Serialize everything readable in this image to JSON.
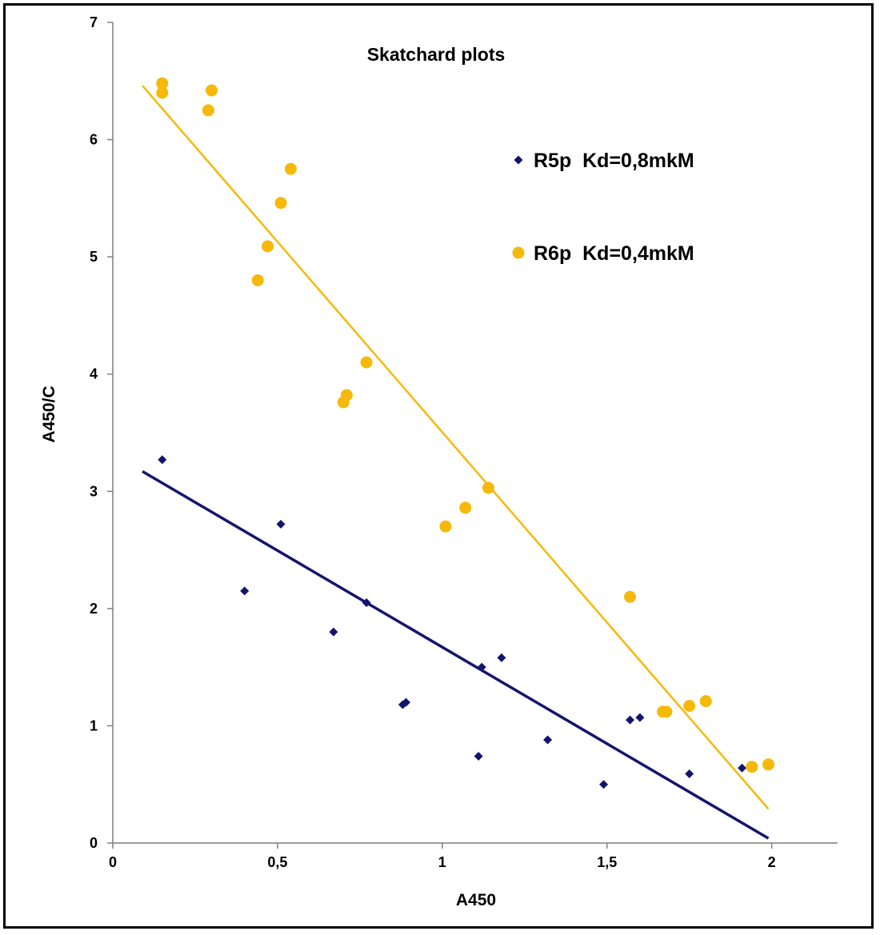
{
  "chart_data": {
    "type": "scatter",
    "title": "Skatchard plots",
    "xlabel": "A450",
    "ylabel": "A450/C",
    "xlim": [
      0,
      2.2
    ],
    "ylim": [
      0,
      7
    ],
    "x_ticks": [
      {
        "value": 0,
        "label": "0"
      },
      {
        "value": 0.5,
        "label": "0,5"
      },
      {
        "value": 1,
        "label": "1"
      },
      {
        "value": 1.5,
        "label": "1,5"
      },
      {
        "value": 2,
        "label": "2"
      }
    ],
    "y_ticks": [
      {
        "value": 0,
        "label": "0"
      },
      {
        "value": 1,
        "label": "1"
      },
      {
        "value": 2,
        "label": "2"
      },
      {
        "value": 3,
        "label": "3"
      },
      {
        "value": 4,
        "label": "4"
      },
      {
        "value": 5,
        "label": "5"
      },
      {
        "value": 6,
        "label": "6"
      },
      {
        "value": 7,
        "label": "7"
      }
    ],
    "grid": false,
    "legend_position": "top-right",
    "series": [
      {
        "name": "R5p  Kd=0,8mkM",
        "marker": "diamond",
        "color": "#14146e",
        "points": [
          [
            0.15,
            3.27
          ],
          [
            0.4,
            2.15
          ],
          [
            0.51,
            2.72
          ],
          [
            0.67,
            1.8
          ],
          [
            0.77,
            2.05
          ],
          [
            0.88,
            1.18
          ],
          [
            0.89,
            1.2
          ],
          [
            1.11,
            0.74
          ],
          [
            1.12,
            1.5
          ],
          [
            1.18,
            1.58
          ],
          [
            1.32,
            0.88
          ],
          [
            1.49,
            0.5
          ],
          [
            1.57,
            1.05
          ],
          [
            1.6,
            1.07
          ],
          [
            1.75,
            0.59
          ],
          [
            1.91,
            0.64
          ]
        ],
        "trendline": {
          "x": [
            0.09,
            1.99
          ],
          "y": [
            3.17,
            0.04
          ]
        }
      },
      {
        "name": "R6p  Kd=0,4mkM",
        "marker": "circle",
        "color": "#f6b90a",
        "points": [
          [
            0.15,
            6.48
          ],
          [
            0.15,
            6.4
          ],
          [
            0.29,
            6.25
          ],
          [
            0.3,
            6.42
          ],
          [
            0.44,
            4.8
          ],
          [
            0.47,
            5.09
          ],
          [
            0.51,
            5.46
          ],
          [
            0.54,
            5.75
          ],
          [
            0.7,
            3.76
          ],
          [
            0.71,
            3.82
          ],
          [
            0.77,
            4.1
          ],
          [
            1.01,
            2.7
          ],
          [
            1.07,
            2.86
          ],
          [
            1.14,
            3.03
          ],
          [
            1.57,
            2.1
          ],
          [
            1.67,
            1.12
          ],
          [
            1.68,
            1.12
          ],
          [
            1.75,
            1.17
          ],
          [
            1.8,
            1.21
          ],
          [
            1.94,
            0.65
          ],
          [
            1.99,
            0.67
          ]
        ],
        "trendline": {
          "x": [
            0.09,
            1.99
          ],
          "y": [
            6.46,
            0.29
          ]
        }
      }
    ]
  }
}
